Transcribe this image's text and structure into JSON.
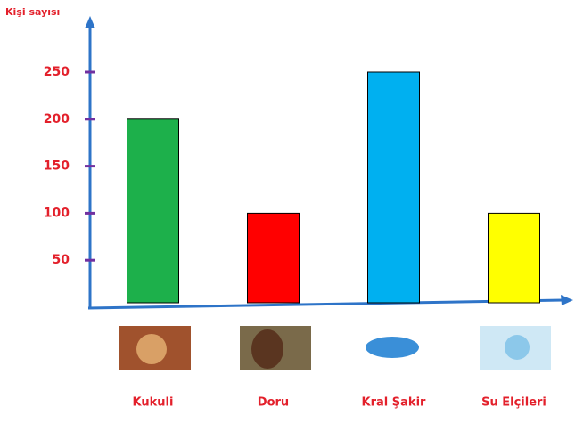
{
  "chart_data": {
    "type": "bar",
    "y_label": "Kişi sayısı",
    "categories": [
      "Kukuli",
      "Doru",
      "Kral Şakir",
      "Su Elçileri"
    ],
    "values": [
      200,
      100,
      250,
      100
    ],
    "colors": [
      "#1db04b",
      "#ff0000",
      "#00b0f0",
      "#ffff00"
    ],
    "ylim": [
      0,
      300
    ],
    "yticks": [
      50,
      100,
      150,
      200,
      250
    ]
  }
}
